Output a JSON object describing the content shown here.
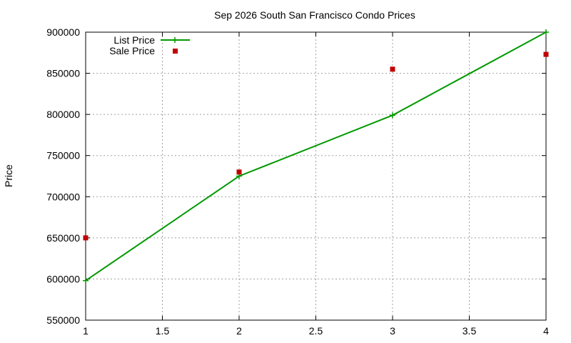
{
  "chart_data": {
    "type": "line",
    "title": "Sep 2026 South San Francisco Condo Prices",
    "xlabel": "",
    "ylabel": "Price",
    "xlim": [
      1,
      4
    ],
    "ylim": [
      550000,
      900000
    ],
    "x_ticks": [
      "1",
      "1.5",
      "2",
      "2.5",
      "3",
      "3.5",
      "4"
    ],
    "y_ticks": [
      "550000",
      "600000",
      "650000",
      "700000",
      "750000",
      "800000",
      "850000",
      "900000"
    ],
    "grid": true,
    "legend_position": "top-left",
    "series": [
      {
        "name": "List Price",
        "style": "lines+crosses",
        "color": "#009900",
        "x": [
          1,
          2,
          3,
          4
        ],
        "y": [
          598000,
          725000,
          799000,
          900000
        ]
      },
      {
        "name": "Sale Price",
        "style": "square-points",
        "color": "#c00000",
        "x": [
          1,
          2,
          3,
          4
        ],
        "y": [
          650000,
          730000,
          855000,
          873000
        ]
      }
    ]
  }
}
